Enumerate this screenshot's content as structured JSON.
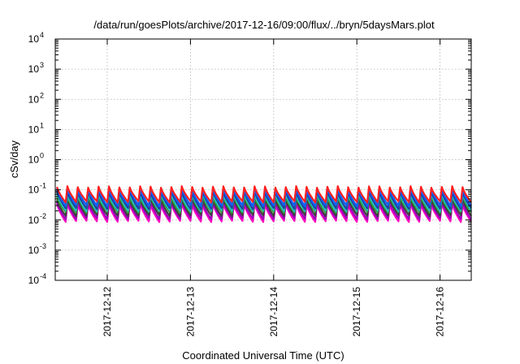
{
  "chart_data": {
    "type": "line",
    "title": "/data/run/goesPlots/archive/2017-12-16/09:00/flux/../bryn/5daysMars.plot",
    "xlabel": "Coordinated Universal Time (UTC)",
    "ylabel": "cSv/day",
    "yscale": "log",
    "ylim": [
      0.0001,
      10000
    ],
    "y_ticks": [
      {
        "base": "10",
        "exp": "4",
        "value": 10000
      },
      {
        "base": "10",
        "exp": "3",
        "value": 1000
      },
      {
        "base": "10",
        "exp": "2",
        "value": 100
      },
      {
        "base": "10",
        "exp": "1",
        "value": 10
      },
      {
        "base": "10",
        "exp": "0",
        "value": 1
      },
      {
        "base": "10",
        "exp": "-1",
        "value": 0.1
      },
      {
        "base": "10",
        "exp": "-2",
        "value": 0.01
      },
      {
        "base": "10",
        "exp": "-3",
        "value": 0.001
      },
      {
        "base": "10",
        "exp": "-4",
        "value": 0.0001
      }
    ],
    "xlim": [
      "2017-12-11T09:00",
      "2017-12-16T09:00"
    ],
    "x_ticks": [
      "2017-12-12",
      "2017-12-13",
      "2017-12-14",
      "2017-12-15",
      "2017-12-16"
    ],
    "grid": true,
    "legend": "none",
    "pattern": {
      "cycles_per_day": 8,
      "shape": "sawtooth (sharp rise, gradual decay)",
      "phase_shifts": [
        "2017-12-11T18:00",
        "2017-12-12T18:00",
        "2017-12-14T06:00",
        "2017-12-15T09:00"
      ]
    },
    "series": [
      {
        "color": "#ff2020",
        "low": 0.04,
        "peak": 0.125
      },
      {
        "color": "#1060ff",
        "low": 0.03,
        "peak": 0.11
      },
      {
        "color": "#2040a0",
        "low": 0.024,
        "peak": 0.09
      },
      {
        "color": "#20c0c0",
        "low": 0.02,
        "peak": 0.075
      },
      {
        "color": "#30a030",
        "low": 0.018,
        "peak": 0.062
      },
      {
        "color": "#404040",
        "low": 0.014,
        "peak": 0.05
      },
      {
        "color": "#a000c0",
        "low": 0.011,
        "peak": 0.04
      },
      {
        "color": "#ff00c0",
        "low": 0.009,
        "peak": 0.034
      }
    ]
  }
}
